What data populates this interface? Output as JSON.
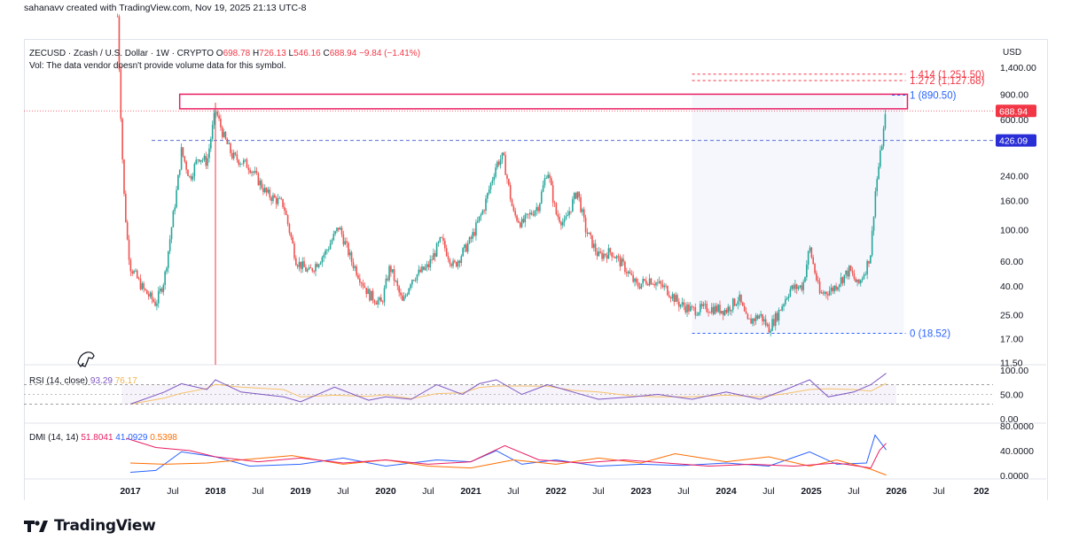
{
  "header": {
    "caption": "sahanavv created with TradingView.com, Nov 19, 2025 21:13 UTC-8"
  },
  "symbol": {
    "name": "ZECUSD · Zcash / U.S. Dollar · 1W · CRYPTO",
    "open_label": "O",
    "open": "698.78",
    "high_label": "H",
    "high": "726.13",
    "low_label": "L",
    "low": "546.16",
    "close_label": "C",
    "close": "688.94",
    "change": "−9.84 (−1.41%)"
  },
  "volume_note": "Vol: The data vendor doesn't provide volume data for this symbol.",
  "currency": "USD",
  "brand": "TradingView",
  "colors": {
    "up": "#26a69a",
    "down": "#ef5350",
    "fib": "#f23645",
    "fib_blue": "#2962ff",
    "rsi_line": "#7e57c2",
    "rsi_ma": "#f6c26b",
    "dmi_plus": "#2962ff",
    "dmi_minus": "#ff6d00",
    "adx": "#e91e63"
  },
  "chart_data": [
    {
      "type": "candlestick",
      "title": "ZECUSD · Zcash / U.S. Dollar · 1W · CRYPTO",
      "scale": "log",
      "y_ticks": [
        "1,400.00",
        "900.00",
        "600.00",
        "240.00",
        "160.00",
        "100.00",
        "60.00",
        "40.00",
        "25.00",
        "17.00",
        "11.50"
      ],
      "x_ticks": [
        "2017",
        "Jul",
        "2018",
        "Jul",
        "2019",
        "Jul",
        "2020",
        "Jul",
        "2021",
        "Jul",
        "2022",
        "Jul",
        "2023",
        "Jul",
        "2024",
        "Jul",
        "2025",
        "Jul",
        "2026",
        "Jul",
        "202"
      ],
      "price_badges": [
        {
          "label": "688.94",
          "value": 688.94,
          "color": "#f23645"
        },
        {
          "label": "426.09",
          "value": 426.09,
          "color": "#2a2ed6"
        }
      ],
      "fib_levels": [
        {
          "label": "1.414 (1,251.50)",
          "value": 1251.5,
          "color": "#f23645"
        },
        {
          "label": "1.272 (1,127.68)",
          "value": 1127.68,
          "color": "#f23645"
        },
        {
          "label": "1 (890.50)",
          "value": 890.5,
          "color": "#2962ff"
        },
        {
          "label": "0 (18.52)",
          "value": 18.52,
          "color": "#2962ff"
        }
      ],
      "resistance_line": 426.09,
      "series_path": [
        {
          "x": 2016.85,
          "y": 3200
        },
        {
          "x": 2016.88,
          "y": 900
        },
        {
          "x": 2016.92,
          "y": 200
        },
        {
          "x": 2016.96,
          "y": 90
        },
        {
          "x": 2017.0,
          "y": 55
        },
        {
          "x": 2017.15,
          "y": 38
        },
        {
          "x": 2017.3,
          "y": 30
        },
        {
          "x": 2017.4,
          "y": 45
        },
        {
          "x": 2017.55,
          "y": 200
        },
        {
          "x": 2017.6,
          "y": 360
        },
        {
          "x": 2017.7,
          "y": 230
        },
        {
          "x": 2017.8,
          "y": 330
        },
        {
          "x": 2017.9,
          "y": 300
        },
        {
          "x": 2018.0,
          "y": 700
        },
        {
          "x": 2018.1,
          "y": 450
        },
        {
          "x": 2018.2,
          "y": 330
        },
        {
          "x": 2018.4,
          "y": 280
        },
        {
          "x": 2018.6,
          "y": 180
        },
        {
          "x": 2018.8,
          "y": 150
        },
        {
          "x": 2018.95,
          "y": 60
        },
        {
          "x": 2019.1,
          "y": 50
        },
        {
          "x": 2019.3,
          "y": 70
        },
        {
          "x": 2019.45,
          "y": 105
        },
        {
          "x": 2019.6,
          "y": 60
        },
        {
          "x": 2019.8,
          "y": 35
        },
        {
          "x": 2019.95,
          "y": 30
        },
        {
          "x": 2020.05,
          "y": 55
        },
        {
          "x": 2020.2,
          "y": 30
        },
        {
          "x": 2020.3,
          "y": 45
        },
        {
          "x": 2020.5,
          "y": 55
        },
        {
          "x": 2020.65,
          "y": 85
        },
        {
          "x": 2020.8,
          "y": 55
        },
        {
          "x": 2021.0,
          "y": 85
        },
        {
          "x": 2021.15,
          "y": 140
        },
        {
          "x": 2021.3,
          "y": 290
        },
        {
          "x": 2021.38,
          "y": 330
        },
        {
          "x": 2021.5,
          "y": 130
        },
        {
          "x": 2021.6,
          "y": 110
        },
        {
          "x": 2021.8,
          "y": 150
        },
        {
          "x": 2021.9,
          "y": 270
        },
        {
          "x": 2022.0,
          "y": 130
        },
        {
          "x": 2022.1,
          "y": 110
        },
        {
          "x": 2022.25,
          "y": 190
        },
        {
          "x": 2022.35,
          "y": 100
        },
        {
          "x": 2022.5,
          "y": 65
        },
        {
          "x": 2022.65,
          "y": 70
        },
        {
          "x": 2022.8,
          "y": 55
        },
        {
          "x": 2022.95,
          "y": 40
        },
        {
          "x": 2023.1,
          "y": 45
        },
        {
          "x": 2023.3,
          "y": 38
        },
        {
          "x": 2023.45,
          "y": 30
        },
        {
          "x": 2023.6,
          "y": 27
        },
        {
          "x": 2023.8,
          "y": 28
        },
        {
          "x": 2024.0,
          "y": 27
        },
        {
          "x": 2024.15,
          "y": 33
        },
        {
          "x": 2024.25,
          "y": 22
        },
        {
          "x": 2024.4,
          "y": 25
        },
        {
          "x": 2024.5,
          "y": 20
        },
        {
          "x": 2024.6,
          "y": 25
        },
        {
          "x": 2024.75,
          "y": 38
        },
        {
          "x": 2024.9,
          "y": 40
        },
        {
          "x": 2024.98,
          "y": 75
        },
        {
          "x": 2025.1,
          "y": 35
        },
        {
          "x": 2025.25,
          "y": 38
        },
        {
          "x": 2025.45,
          "y": 52
        },
        {
          "x": 2025.55,
          "y": 40
        },
        {
          "x": 2025.65,
          "y": 55
        },
        {
          "x": 2025.7,
          "y": 70
        },
        {
          "x": 2025.75,
          "y": 180
        },
        {
          "x": 2025.8,
          "y": 300
        },
        {
          "x": 2025.85,
          "y": 500
        },
        {
          "x": 2025.88,
          "y": 688.94
        }
      ]
    },
    {
      "type": "line",
      "title": "RSI (14, close)",
      "values_shown": [
        "93.29",
        "76.17"
      ],
      "y_ticks": [
        "100.00",
        "50.00",
        "0.00"
      ],
      "bands": [
        70,
        30
      ],
      "series_path": [
        {
          "x": 2017.0,
          "y": 30
        },
        {
          "x": 2017.4,
          "y": 55
        },
        {
          "x": 2017.6,
          "y": 72
        },
        {
          "x": 2017.9,
          "y": 60
        },
        {
          "x": 2018.0,
          "y": 80
        },
        {
          "x": 2018.3,
          "y": 55
        },
        {
          "x": 2018.8,
          "y": 45
        },
        {
          "x": 2019.0,
          "y": 35
        },
        {
          "x": 2019.4,
          "y": 65
        },
        {
          "x": 2019.8,
          "y": 38
        },
        {
          "x": 2020.0,
          "y": 45
        },
        {
          "x": 2020.3,
          "y": 40
        },
        {
          "x": 2020.6,
          "y": 70
        },
        {
          "x": 2020.9,
          "y": 50
        },
        {
          "x": 2021.1,
          "y": 72
        },
        {
          "x": 2021.3,
          "y": 80
        },
        {
          "x": 2021.6,
          "y": 50
        },
        {
          "x": 2021.9,
          "y": 70
        },
        {
          "x": 2022.2,
          "y": 55
        },
        {
          "x": 2022.5,
          "y": 40
        },
        {
          "x": 2022.9,
          "y": 45
        },
        {
          "x": 2023.2,
          "y": 50
        },
        {
          "x": 2023.6,
          "y": 40
        },
        {
          "x": 2024.0,
          "y": 55
        },
        {
          "x": 2024.4,
          "y": 40
        },
        {
          "x": 2024.7,
          "y": 60
        },
        {
          "x": 2024.98,
          "y": 80
        },
        {
          "x": 2025.2,
          "y": 45
        },
        {
          "x": 2025.5,
          "y": 55
        },
        {
          "x": 2025.7,
          "y": 70
        },
        {
          "x": 2025.88,
          "y": 93.29
        }
      ]
    },
    {
      "type": "line",
      "title": "DMI (14, 14)",
      "values_shown": [
        "51.8041",
        "41.0929",
        "0.5398"
      ],
      "y_ticks": [
        "80.0000",
        "40.0000",
        "0.0000"
      ],
      "series": [
        {
          "values": [
            {
              "x": 2017.0,
              "y": 5
            },
            {
              "x": 2017.3,
              "y": 8
            },
            {
              "x": 2017.6,
              "y": 38
            },
            {
              "x": 2018.0,
              "y": 30
            },
            {
              "x": 2018.4,
              "y": 15
            },
            {
              "x": 2019.0,
              "y": 18
            },
            {
              "x": 2019.5,
              "y": 28
            },
            {
              "x": 2020.0,
              "y": 15
            },
            {
              "x": 2020.6,
              "y": 25
            },
            {
              "x": 2021.0,
              "y": 22
            },
            {
              "x": 2021.3,
              "y": 40
            },
            {
              "x": 2021.6,
              "y": 18
            },
            {
              "x": 2022.0,
              "y": 25
            },
            {
              "x": 2022.5,
              "y": 15
            },
            {
              "x": 2023.0,
              "y": 18
            },
            {
              "x": 2023.5,
              "y": 16
            },
            {
              "x": 2024.0,
              "y": 20
            },
            {
              "x": 2024.5,
              "y": 15
            },
            {
              "x": 2024.98,
              "y": 38
            },
            {
              "x": 2025.3,
              "y": 18
            },
            {
              "x": 2025.65,
              "y": 20
            },
            {
              "x": 2025.75,
              "y": 65
            },
            {
              "x": 2025.88,
              "y": 41.0929
            }
          ]
        },
        {
          "values": [
            {
              "x": 2017.0,
              "y": 20
            },
            {
              "x": 2017.4,
              "y": 18
            },
            {
              "x": 2017.9,
              "y": 20
            },
            {
              "x": 2018.3,
              "y": 25
            },
            {
              "x": 2018.9,
              "y": 32
            },
            {
              "x": 2019.5,
              "y": 18
            },
            {
              "x": 2020.0,
              "y": 25
            },
            {
              "x": 2020.5,
              "y": 15
            },
            {
              "x": 2021.0,
              "y": 12
            },
            {
              "x": 2021.5,
              "y": 25
            },
            {
              "x": 2022.0,
              "y": 18
            },
            {
              "x": 2022.5,
              "y": 28
            },
            {
              "x": 2023.0,
              "y": 20
            },
            {
              "x": 2023.4,
              "y": 35
            },
            {
              "x": 2024.0,
              "y": 22
            },
            {
              "x": 2024.5,
              "y": 30
            },
            {
              "x": 2024.98,
              "y": 15
            },
            {
              "x": 2025.3,
              "y": 25
            },
            {
              "x": 2025.7,
              "y": 10
            },
            {
              "x": 2025.88,
              "y": 0.5398
            }
          ]
        },
        {
          "values": [
            {
              "x": 2016.95,
              "y": 60
            },
            {
              "x": 2017.3,
              "y": 45
            },
            {
              "x": 2017.7,
              "y": 40
            },
            {
              "x": 2018.0,
              "y": 30
            },
            {
              "x": 2018.5,
              "y": 22
            },
            {
              "x": 2019.0,
              "y": 28
            },
            {
              "x": 2019.5,
              "y": 20
            },
            {
              "x": 2020.0,
              "y": 25
            },
            {
              "x": 2020.5,
              "y": 18
            },
            {
              "x": 2021.0,
              "y": 22
            },
            {
              "x": 2021.4,
              "y": 48
            },
            {
              "x": 2021.8,
              "y": 25
            },
            {
              "x": 2022.3,
              "y": 20
            },
            {
              "x": 2022.8,
              "y": 25
            },
            {
              "x": 2023.3,
              "y": 20
            },
            {
              "x": 2023.8,
              "y": 15
            },
            {
              "x": 2024.3,
              "y": 18
            },
            {
              "x": 2024.8,
              "y": 15
            },
            {
              "x": 2025.3,
              "y": 20
            },
            {
              "x": 2025.7,
              "y": 12
            },
            {
              "x": 2025.8,
              "y": 40
            },
            {
              "x": 2025.88,
              "y": 51.8041
            }
          ]
        }
      ]
    }
  ]
}
